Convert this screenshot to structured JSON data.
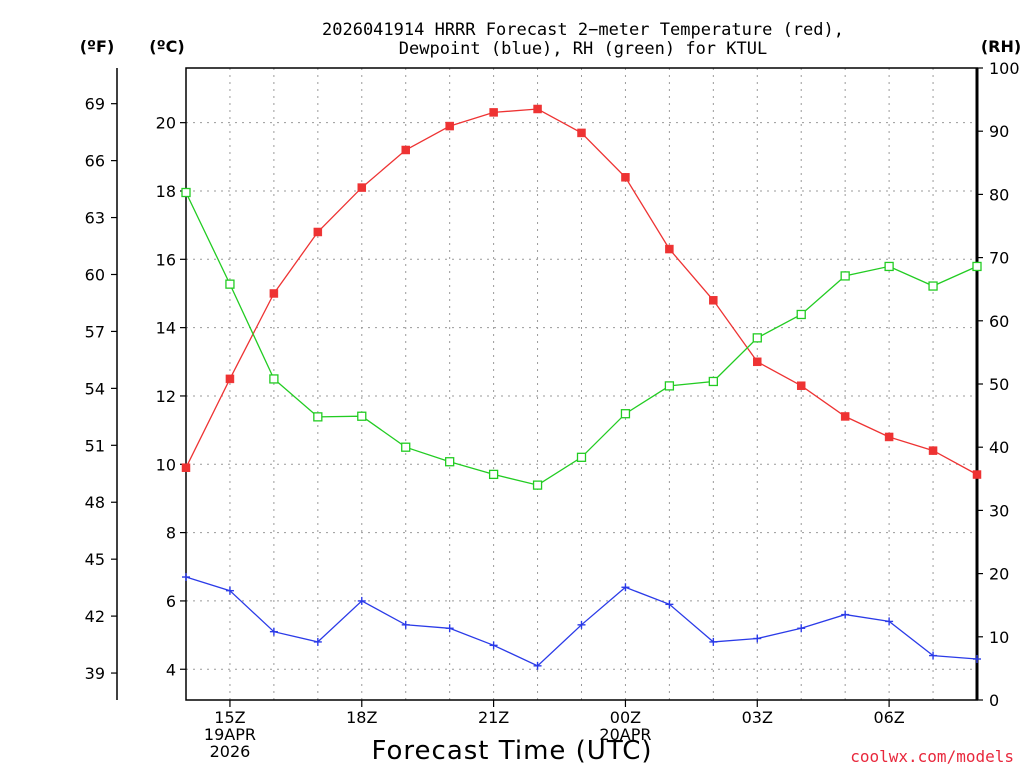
{
  "title_line1": "2026041914 HRRR Forecast 2−meter Temperature (red),",
  "title_line2": "Dewpoint (blue), RH (green) for KTUL",
  "credit": "coolwx.com/models",
  "units": {
    "f": "(ºF)",
    "c": "(ºC)",
    "rh": "(RH)"
  },
  "chart_data": {
    "type": "line",
    "title": "2026041914 HRRR Forecast 2-meter Temperature (red), Dewpoint (blue), RH (green) for KTUL",
    "xlabel": "Forecast Time (UTC)",
    "x_hours": [
      14,
      15,
      16,
      17,
      18,
      19,
      20,
      21,
      22,
      23,
      24,
      25,
      26,
      27,
      28,
      29,
      30,
      31,
      32
    ],
    "x_range": [
      14,
      32
    ],
    "x_ticks": [
      {
        "hour": 15,
        "labels": [
          "15Z",
          "19APR",
          "2026"
        ]
      },
      {
        "hour": 18,
        "labels": [
          "18Z"
        ]
      },
      {
        "hour": 21,
        "labels": [
          "21Z"
        ]
      },
      {
        "hour": 24,
        "labels": [
          "00Z",
          "20APR"
        ]
      },
      {
        "hour": 27,
        "labels": [
          "03Z"
        ]
      },
      {
        "hour": 30,
        "labels": [
          "06Z"
        ]
      }
    ],
    "celsius_axis": {
      "range": [
        3.1,
        21.6
      ],
      "ticks": [
        4,
        6,
        8,
        10,
        12,
        14,
        16,
        18,
        20
      ]
    },
    "fahrenheit_axis": {
      "ticks": [
        39,
        42,
        45,
        48,
        51,
        54,
        57,
        60,
        63,
        66,
        69
      ]
    },
    "rh_axis": {
      "range": [
        0,
        100
      ],
      "ticks": [
        0,
        10,
        20,
        30,
        40,
        50,
        60,
        70,
        80,
        90,
        100
      ]
    },
    "series": [
      {
        "name": "Temperature",
        "unit": "C",
        "axis": "celsius",
        "color": "#ee3333",
        "marker": "filled-square",
        "values": [
          9.9,
          12.5,
          15.0,
          16.8,
          18.1,
          19.2,
          19.9,
          20.3,
          20.4,
          19.7,
          18.4,
          16.3,
          14.8,
          13.0,
          12.3,
          11.4,
          10.8,
          10.4,
          9.7
        ]
      },
      {
        "name": "Dewpoint",
        "unit": "C",
        "axis": "celsius",
        "color": "#2b3be8",
        "marker": "plus",
        "values": [
          6.7,
          6.3,
          5.1,
          4.8,
          6.0,
          5.3,
          5.2,
          4.7,
          4.1,
          5.3,
          6.4,
          5.9,
          4.8,
          4.9,
          5.2,
          5.6,
          5.4,
          4.4,
          4.3
        ]
      },
      {
        "name": "RH",
        "unit": "%",
        "axis": "rh",
        "color": "#22cc22",
        "marker": "open-square",
        "values": [
          80.3,
          65.8,
          50.8,
          44.8,
          44.9,
          40.0,
          37.7,
          35.7,
          34.0,
          38.4,
          45.3,
          49.7,
          50.4,
          57.3,
          61.0,
          67.1,
          68.6,
          65.5,
          68.6
        ]
      }
    ]
  }
}
